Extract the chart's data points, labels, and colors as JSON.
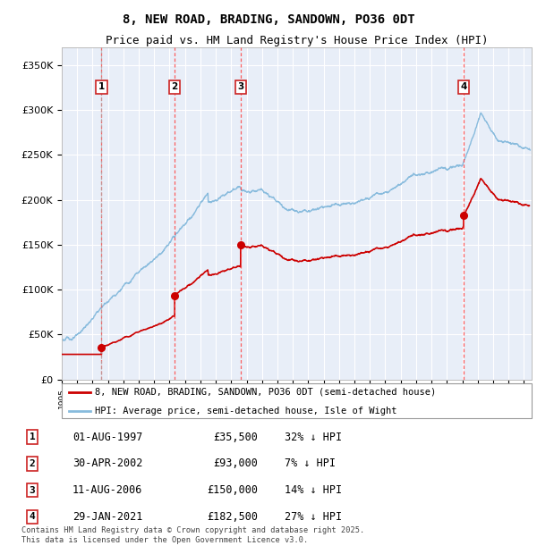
{
  "title": "8, NEW ROAD, BRADING, SANDOWN, PO36 0DT",
  "subtitle": "Price paid vs. HM Land Registry's House Price Index (HPI)",
  "footer": "Contains HM Land Registry data © Crown copyright and database right 2025.\nThis data is licensed under the Open Government Licence v3.0.",
  "legend_line1": "8, NEW ROAD, BRADING, SANDOWN, PO36 0DT (semi-detached house)",
  "legend_line2": "HPI: Average price, semi-detached house, Isle of Wight",
  "sale_line_color": "#cc0000",
  "hpi_line_color": "#88bbdd",
  "plot_bg_color": "#e8eef8",
  "ylim": [
    0,
    370000
  ],
  "xlim_start": 1995.0,
  "xlim_end": 2025.5,
  "yticks": [
    0,
    50000,
    100000,
    150000,
    200000,
    250000,
    300000,
    350000
  ],
  "ytick_labels": [
    "£0",
    "£50K",
    "£100K",
    "£150K",
    "£200K",
    "£250K",
    "£300K",
    "£350K"
  ],
  "transactions": [
    {
      "num": 1,
      "date": "01-AUG-1997",
      "price": 35500,
      "hpi_diff": "32% ↓ HPI",
      "year": 1997.58
    },
    {
      "num": 2,
      "date": "30-APR-2002",
      "price": 93000,
      "hpi_diff": "7% ↓ HPI",
      "year": 2002.33
    },
    {
      "num": 3,
      "date": "11-AUG-2006",
      "price": 150000,
      "hpi_diff": "14% ↓ HPI",
      "year": 2006.61
    },
    {
      "num": 4,
      "date": "29-JAN-2021",
      "price": 182500,
      "hpi_diff": "27% ↓ HPI",
      "year": 2021.08
    }
  ]
}
